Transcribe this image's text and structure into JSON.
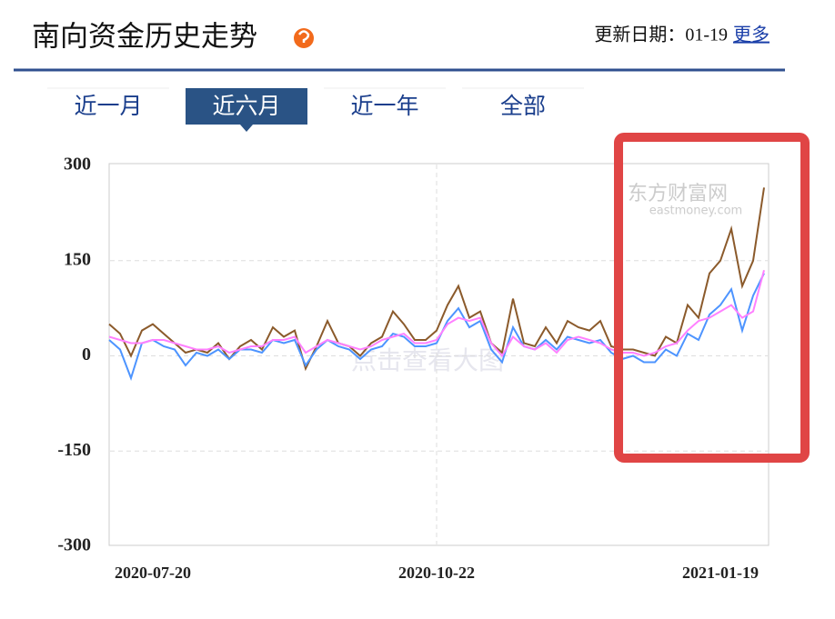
{
  "header": {
    "title": "南向资金历史走势",
    "update_label": "更新日期：01-19",
    "more_link": "更多"
  },
  "tabs": [
    "近一月",
    "近六月",
    "近一年",
    "全部"
  ],
  "active_tab": 1,
  "watermark": {
    "brand": "东方财富网",
    "site": "eastmoney.com",
    "hint": "点击查看大图"
  },
  "chart_data": {
    "type": "line",
    "categories": [
      null,
      null,
      null,
      null,
      "2020-07-20",
      null,
      null,
      null,
      null,
      null,
      null,
      null,
      null,
      null,
      null,
      null,
      null,
      null,
      null,
      null,
      null,
      null,
      null,
      null,
      null,
      null,
      null,
      null,
      null,
      null,
      "2020-10-22",
      null,
      null,
      null,
      null,
      null,
      null,
      null,
      null,
      null,
      null,
      null,
      null,
      null,
      null,
      null,
      null,
      null,
      null,
      null,
      null,
      null,
      null,
      null,
      null,
      null,
      "2021-01-19",
      null,
      null,
      null,
      null
    ],
    "series": [
      {
        "color": "#8b5a2b",
        "values": [
          50,
          35,
          0,
          40,
          50,
          35,
          20,
          5,
          10,
          5,
          20,
          -5,
          15,
          25,
          10,
          45,
          30,
          40,
          -20,
          15,
          55,
          20,
          15,
          0,
          20,
          30,
          70,
          50,
          25,
          25,
          40,
          80,
          110,
          60,
          70,
          20,
          5,
          90,
          20,
          15,
          45,
          20,
          55,
          45,
          40,
          55,
          15,
          10,
          10,
          5,
          0,
          30,
          20,
          80,
          60,
          130,
          150,
          200,
          110,
          150,
          265
        ]
      },
      {
        "color": "#4d94ff",
        "values": [
          25,
          10,
          -35,
          20,
          25,
          15,
          10,
          -15,
          5,
          0,
          10,
          -5,
          10,
          10,
          5,
          25,
          20,
          25,
          -15,
          10,
          25,
          15,
          10,
          -5,
          10,
          15,
          35,
          30,
          15,
          15,
          20,
          55,
          75,
          45,
          55,
          10,
          -10,
          45,
          15,
          10,
          25,
          10,
          30,
          25,
          20,
          25,
          5,
          -5,
          0,
          -10,
          -10,
          10,
          0,
          35,
          25,
          65,
          80,
          105,
          40,
          95,
          130
        ]
      },
      {
        "color": "#ff80ff",
        "values": [
          30,
          25,
          20,
          20,
          25,
          25,
          20,
          15,
          10,
          10,
          15,
          5,
          10,
          15,
          15,
          25,
          25,
          30,
          5,
          15,
          25,
          20,
          15,
          10,
          15,
          25,
          30,
          35,
          20,
          20,
          25,
          50,
          60,
          55,
          60,
          20,
          0,
          30,
          15,
          10,
          20,
          5,
          25,
          30,
          25,
          20,
          10,
          5,
          5,
          0,
          5,
          15,
          20,
          40,
          55,
          60,
          70,
          80,
          60,
          70,
          135
        ]
      }
    ],
    "ylim": [
      -300,
      300
    ],
    "yticks": [
      -300,
      -150,
      0,
      150,
      300
    ],
    "grid": true
  }
}
